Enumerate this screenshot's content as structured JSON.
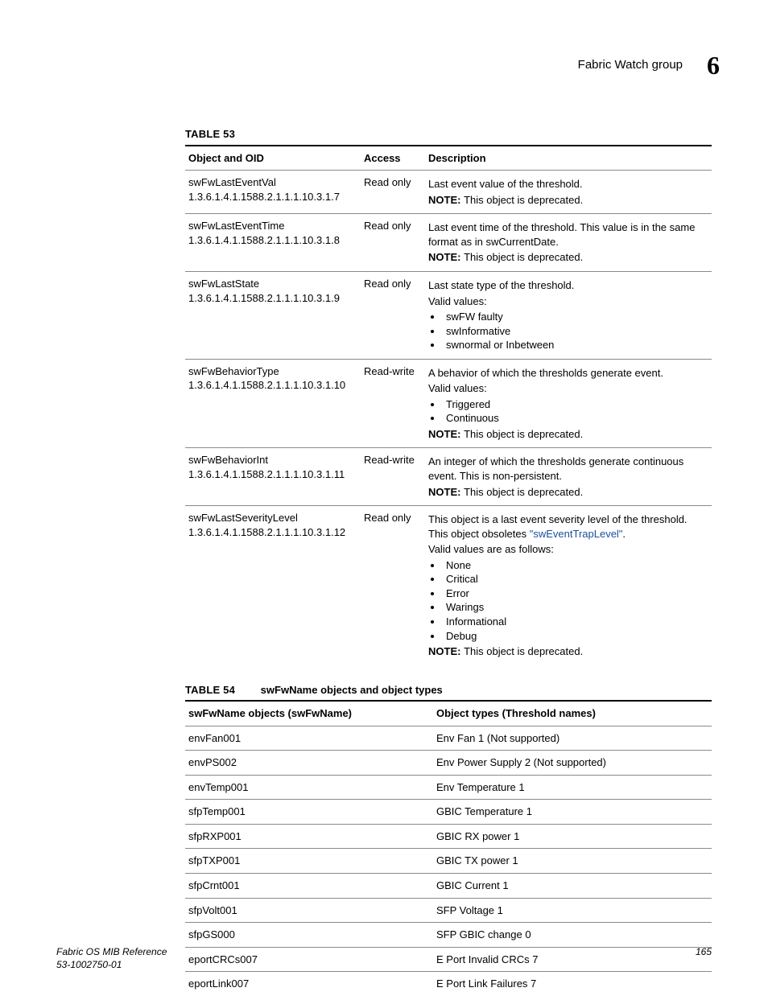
{
  "header": {
    "title": "Fabric Watch group",
    "chapter": "6"
  },
  "table53": {
    "label": "TABLE 53",
    "columns": {
      "oid": "Object and OID",
      "acc": "Access",
      "desc": "Description"
    },
    "rows": [
      {
        "name": "swFwLastEventVal",
        "oid": "1.3.6.1.4.1.1588.2.1.1.1.10.3.1.7",
        "acc": "Read only",
        "desc": [
          "Last event value of the threshold."
        ],
        "note": "This object is deprecated."
      },
      {
        "name": "swFwLastEventTime",
        "oid": "1.3.6.1.4.1.1588.2.1.1.1.10.3.1.8",
        "acc": "Read only",
        "desc": [
          "Last event time of the threshold. This value is in the same format as in swCurrentDate."
        ],
        "note": "This object is deprecated."
      },
      {
        "name": "swFwLastState",
        "oid": "1.3.6.1.4.1.1588.2.1.1.1.10.3.1.9",
        "acc": "Read only",
        "desc": [
          "Last state type of the threshold.",
          "Valid values:"
        ],
        "bullets": [
          "swFW faulty",
          "swInformative",
          "swnormal or Inbetween"
        ]
      },
      {
        "name": "swFwBehaviorType",
        "oid": "1.3.6.1.4.1.1588.2.1.1.1.10.3.1.10",
        "acc": "Read-write",
        "desc": [
          "A behavior of which the thresholds generate event.",
          "Valid values:"
        ],
        "bullets": [
          "Triggered",
          "Continuous"
        ],
        "note": "This object is deprecated."
      },
      {
        "name": "swFwBehaviorInt",
        "oid": "1.3.6.1.4.1.1588.2.1.1.1.10.3.1.11",
        "acc": "Read-write",
        "desc": [
          "An integer of which the thresholds generate continuous event. This is non-persistent."
        ],
        "note": "This object is deprecated."
      },
      {
        "name": "swFwLastSeverityLevel",
        "oid": "1.3.6.1.4.1.1588.2.1.1.1.10.3.1.12",
        "acc": "Read only",
        "desc_pre": "This object is a last event severity level of the threshold. This object obsoletes ",
        "link": "\"swEventTrapLevel\"",
        "desc_post": ".",
        "desc2": "Valid values are as follows:",
        "bullets": [
          "None",
          "Critical",
          "Error",
          "Warings",
          "Informational",
          "Debug"
        ],
        "note": "This object is deprecated."
      }
    ],
    "note_label": "NOTE:  "
  },
  "table54": {
    "label": "TABLE 54",
    "caption": "swFwName objects and object types",
    "columns": {
      "a": "swFwName objects (swFwName)",
      "b": "Object types (Threshold names)"
    },
    "rows": [
      {
        "a": "envFan001",
        "b": "Env Fan 1 (Not supported)"
      },
      {
        "a": "envPS002",
        "b": "Env Power Supply 2 (Not supported)"
      },
      {
        "a": "envTemp001",
        "b": "Env Temperature 1"
      },
      {
        "a": "sfpTemp001",
        "b": "GBIC Temperature 1"
      },
      {
        "a": "sfpRXP001",
        "b": "GBIC RX power 1"
      },
      {
        "a": "sfpTXP001",
        "b": "GBIC TX power 1"
      },
      {
        "a": "sfpCrnt001",
        "b": "GBIC Current 1"
      },
      {
        "a": "sfpVolt001",
        "b": "SFP Voltage 1"
      },
      {
        "a": "sfpGS000",
        "b": "SFP GBIC change 0"
      },
      {
        "a": "eportCRCs007",
        "b": "E Port Invalid CRCs 7"
      },
      {
        "a": "eportLink007",
        "b": "E Port Link Failures 7"
      }
    ]
  },
  "footer": {
    "doc": "Fabric OS MIB Reference",
    "rev": "53-1002750-01",
    "page": "165"
  }
}
